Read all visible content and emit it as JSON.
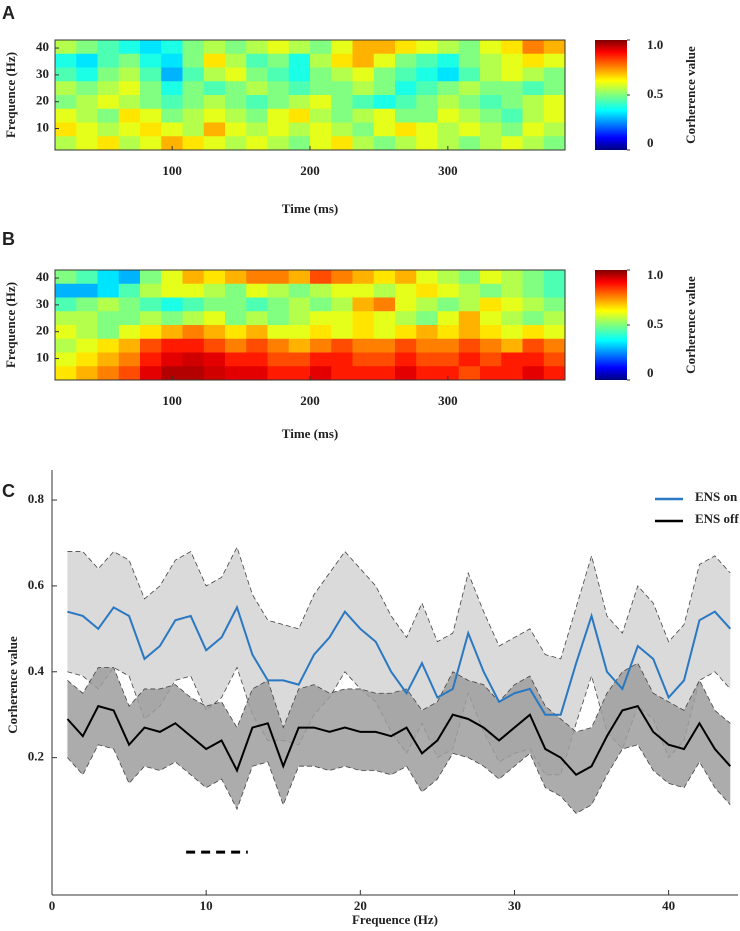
{
  "chart_data": [
    {
      "type": "heatmap",
      "panel": "A",
      "xlabel": "Time (ms)",
      "ylabel": "Frequence (Hz)",
      "xlim": [
        15,
        385
      ],
      "ylim": [
        2,
        43
      ],
      "xticks": [
        100,
        200,
        300
      ],
      "yticks": [
        10,
        20,
        30,
        40
      ],
      "clim": [
        0,
        1
      ],
      "cticks": [
        0,
        0.5,
        {
          "value": 1,
          "label": "1.0"
        }
      ],
      "colorbar_label": "Corherence value",
      "z": [
        [
          0.55,
          0.5,
          0.45,
          0.4,
          0.35,
          0.4,
          0.5,
          0.55,
          0.5,
          0.55,
          0.6,
          0.55,
          0.5,
          0.6,
          0.7,
          0.7,
          0.65,
          0.6,
          0.55,
          0.5,
          0.6,
          0.65,
          0.75,
          0.7
        ],
        [
          0.4,
          0.35,
          0.45,
          0.5,
          0.4,
          0.35,
          0.5,
          0.65,
          0.55,
          0.45,
          0.5,
          0.4,
          0.55,
          0.65,
          0.7,
          0.6,
          0.5,
          0.45,
          0.4,
          0.5,
          0.55,
          0.6,
          0.65,
          0.6
        ],
        [
          0.45,
          0.4,
          0.5,
          0.55,
          0.45,
          0.3,
          0.45,
          0.55,
          0.6,
          0.5,
          0.45,
          0.4,
          0.5,
          0.55,
          0.6,
          0.5,
          0.45,
          0.4,
          0.35,
          0.45,
          0.55,
          0.6,
          0.55,
          0.5
        ],
        [
          0.55,
          0.5,
          0.55,
          0.6,
          0.5,
          0.4,
          0.5,
          0.45,
          0.5,
          0.55,
          0.5,
          0.45,
          0.5,
          0.5,
          0.55,
          0.5,
          0.4,
          0.45,
          0.5,
          0.55,
          0.5,
          0.5,
          0.45,
          0.5
        ],
        [
          0.5,
          0.55,
          0.6,
          0.55,
          0.5,
          0.45,
          0.5,
          0.55,
          0.5,
          0.45,
          0.5,
          0.55,
          0.6,
          0.5,
          0.45,
          0.4,
          0.45,
          0.5,
          0.55,
          0.5,
          0.45,
          0.5,
          0.55,
          0.6
        ],
        [
          0.6,
          0.55,
          0.5,
          0.65,
          0.6,
          0.5,
          0.55,
          0.6,
          0.55,
          0.5,
          0.6,
          0.65,
          0.55,
          0.5,
          0.55,
          0.6,
          0.5,
          0.5,
          0.6,
          0.55,
          0.5,
          0.45,
          0.55,
          0.6
        ],
        [
          0.65,
          0.6,
          0.55,
          0.6,
          0.65,
          0.6,
          0.55,
          0.7,
          0.6,
          0.55,
          0.6,
          0.55,
          0.6,
          0.55,
          0.5,
          0.6,
          0.65,
          0.6,
          0.55,
          0.6,
          0.55,
          0.5,
          0.6,
          0.55
        ],
        [
          0.55,
          0.6,
          0.65,
          0.55,
          0.6,
          0.7,
          0.65,
          0.6,
          0.55,
          0.6,
          0.55,
          0.5,
          0.6,
          0.65,
          0.55,
          0.5,
          0.55,
          0.6,
          0.55,
          0.5,
          0.55,
          0.6,
          0.55,
          0.5
        ]
      ]
    },
    {
      "type": "heatmap",
      "panel": "B",
      "xlabel": "Time (ms)",
      "ylabel": "Frequence (Hz)",
      "xlim": [
        15,
        385
      ],
      "ylim": [
        2,
        43
      ],
      "xticks": [
        100,
        200,
        300
      ],
      "yticks": [
        10,
        20,
        30,
        40
      ],
      "clim": [
        0,
        1
      ],
      "cticks": [
        0,
        0.5,
        {
          "value": 1,
          "label": "1.0"
        }
      ],
      "colorbar_label": "Corherence value",
      "z": [
        [
          0.5,
          0.45,
          0.35,
          0.3,
          0.5,
          0.6,
          0.7,
          0.65,
          0.7,
          0.75,
          0.75,
          0.7,
          0.8,
          0.75,
          0.7,
          0.65,
          0.7,
          0.6,
          0.55,
          0.5,
          0.6,
          0.55,
          0.5,
          0.45
        ],
        [
          0.3,
          0.3,
          0.35,
          0.45,
          0.55,
          0.6,
          0.6,
          0.55,
          0.5,
          0.6,
          0.55,
          0.5,
          0.55,
          0.6,
          0.6,
          0.55,
          0.6,
          0.65,
          0.6,
          0.55,
          0.5,
          0.55,
          0.5,
          0.45
        ],
        [
          0.45,
          0.5,
          0.55,
          0.5,
          0.45,
          0.4,
          0.45,
          0.5,
          0.5,
          0.45,
          0.5,
          0.55,
          0.5,
          0.55,
          0.7,
          0.75,
          0.6,
          0.55,
          0.5,
          0.55,
          0.65,
          0.6,
          0.55,
          0.5
        ],
        [
          0.55,
          0.55,
          0.5,
          0.5,
          0.55,
          0.5,
          0.55,
          0.6,
          0.5,
          0.55,
          0.5,
          0.55,
          0.6,
          0.6,
          0.65,
          0.6,
          0.55,
          0.5,
          0.6,
          0.7,
          0.6,
          0.55,
          0.5,
          0.55
        ],
        [
          0.6,
          0.55,
          0.5,
          0.6,
          0.65,
          0.7,
          0.75,
          0.7,
          0.65,
          0.7,
          0.6,
          0.6,
          0.65,
          0.6,
          0.65,
          0.6,
          0.65,
          0.7,
          0.65,
          0.7,
          0.65,
          0.6,
          0.65,
          0.6
        ],
        [
          0.55,
          0.6,
          0.65,
          0.7,
          0.8,
          0.85,
          0.85,
          0.8,
          0.75,
          0.8,
          0.75,
          0.7,
          0.75,
          0.8,
          0.75,
          0.75,
          0.8,
          0.75,
          0.75,
          0.8,
          0.75,
          0.7,
          0.8,
          0.75
        ],
        [
          0.6,
          0.65,
          0.7,
          0.75,
          0.85,
          0.9,
          0.92,
          0.9,
          0.85,
          0.85,
          0.8,
          0.8,
          0.85,
          0.85,
          0.8,
          0.8,
          0.85,
          0.8,
          0.8,
          0.85,
          0.8,
          0.85,
          0.85,
          0.8
        ],
        [
          0.65,
          0.7,
          0.75,
          0.8,
          0.9,
          0.95,
          0.95,
          0.92,
          0.9,
          0.9,
          0.85,
          0.85,
          0.9,
          0.85,
          0.85,
          0.85,
          0.9,
          0.85,
          0.85,
          0.8,
          0.85,
          0.85,
          0.9,
          0.85
        ]
      ]
    },
    {
      "type": "line",
      "panel": "C",
      "xlabel": "Frequence (Hz)",
      "ylabel": "Corherence value",
      "xlim": [
        0,
        44.5
      ],
      "ylim": [
        -0.12,
        0.87
      ],
      "xticks": [
        0,
        10,
        20,
        30,
        40
      ],
      "yticks": [
        0.2,
        0.4,
        0.6,
        0.8
      ],
      "legend": "top-right",
      "x": [
        1,
        2,
        3,
        4,
        5,
        6,
        7,
        8,
        9,
        10,
        11,
        12,
        13,
        14,
        15,
        16,
        17,
        18,
        19,
        20,
        21,
        22,
        23,
        24,
        25,
        26,
        27,
        28,
        29,
        30,
        31,
        32,
        33,
        34,
        35,
        36,
        37,
        38,
        39,
        40,
        41,
        42,
        43,
        44
      ],
      "significance": {
        "x": [
          8.7,
          12.7
        ],
        "y": -0.02
      },
      "series": [
        {
          "name": "ENS on",
          "color": "#2a78c2",
          "band_color": "#d4d4d4",
          "values": [
            0.54,
            0.53,
            0.5,
            0.55,
            0.53,
            0.43,
            0.46,
            0.52,
            0.53,
            0.45,
            0.48,
            0.55,
            0.44,
            0.38,
            0.38,
            0.37,
            0.44,
            0.48,
            0.54,
            0.5,
            0.47,
            0.4,
            0.35,
            0.42,
            0.34,
            0.36,
            0.49,
            0.4,
            0.33,
            0.35,
            0.36,
            0.3,
            0.3,
            0.42,
            0.53,
            0.4,
            0.36,
            0.46,
            0.43,
            0.34,
            0.38,
            0.52,
            0.54,
            0.5
          ],
          "upper": [
            0.68,
            0.68,
            0.64,
            0.68,
            0.66,
            0.57,
            0.6,
            0.66,
            0.68,
            0.6,
            0.62,
            0.69,
            0.58,
            0.52,
            0.51,
            0.5,
            0.58,
            0.63,
            0.68,
            0.64,
            0.6,
            0.53,
            0.48,
            0.56,
            0.47,
            0.49,
            0.63,
            0.54,
            0.46,
            0.48,
            0.5,
            0.44,
            0.43,
            0.55,
            0.67,
            0.53,
            0.49,
            0.6,
            0.56,
            0.47,
            0.51,
            0.65,
            0.67,
            0.63
          ],
          "lower": [
            0.4,
            0.39,
            0.36,
            0.41,
            0.39,
            0.29,
            0.32,
            0.38,
            0.39,
            0.31,
            0.34,
            0.41,
            0.3,
            0.24,
            0.24,
            0.23,
            0.3,
            0.34,
            0.4,
            0.36,
            0.33,
            0.26,
            0.21,
            0.28,
            0.2,
            0.22,
            0.35,
            0.26,
            0.19,
            0.21,
            0.22,
            0.16,
            0.16,
            0.28,
            0.39,
            0.26,
            0.22,
            0.32,
            0.29,
            0.2,
            0.24,
            0.38,
            0.4,
            0.36
          ]
        },
        {
          "name": "ENS off",
          "color": "#000000",
          "band_color": "#9e9e9e",
          "values": [
            0.29,
            0.25,
            0.32,
            0.31,
            0.23,
            0.27,
            0.26,
            0.28,
            0.25,
            0.22,
            0.24,
            0.17,
            0.27,
            0.28,
            0.18,
            0.27,
            0.27,
            0.26,
            0.27,
            0.26,
            0.26,
            0.25,
            0.27,
            0.21,
            0.24,
            0.3,
            0.29,
            0.27,
            0.24,
            0.27,
            0.3,
            0.22,
            0.2,
            0.16,
            0.18,
            0.25,
            0.31,
            0.32,
            0.26,
            0.23,
            0.22,
            0.28,
            0.22,
            0.18
          ],
          "upper": [
            0.38,
            0.35,
            0.41,
            0.41,
            0.32,
            0.36,
            0.36,
            0.37,
            0.34,
            0.32,
            0.33,
            0.27,
            0.36,
            0.38,
            0.27,
            0.36,
            0.37,
            0.35,
            0.36,
            0.36,
            0.35,
            0.35,
            0.36,
            0.31,
            0.33,
            0.4,
            0.38,
            0.37,
            0.33,
            0.37,
            0.39,
            0.32,
            0.29,
            0.26,
            0.27,
            0.35,
            0.4,
            0.42,
            0.35,
            0.33,
            0.31,
            0.38,
            0.31,
            0.28
          ],
          "lower": [
            0.2,
            0.16,
            0.23,
            0.22,
            0.14,
            0.18,
            0.17,
            0.19,
            0.16,
            0.13,
            0.15,
            0.08,
            0.18,
            0.19,
            0.09,
            0.18,
            0.18,
            0.17,
            0.18,
            0.17,
            0.17,
            0.16,
            0.18,
            0.12,
            0.15,
            0.21,
            0.2,
            0.18,
            0.15,
            0.18,
            0.21,
            0.13,
            0.11,
            0.07,
            0.09,
            0.16,
            0.22,
            0.23,
            0.17,
            0.14,
            0.13,
            0.19,
            0.13,
            0.09
          ]
        }
      ]
    }
  ]
}
